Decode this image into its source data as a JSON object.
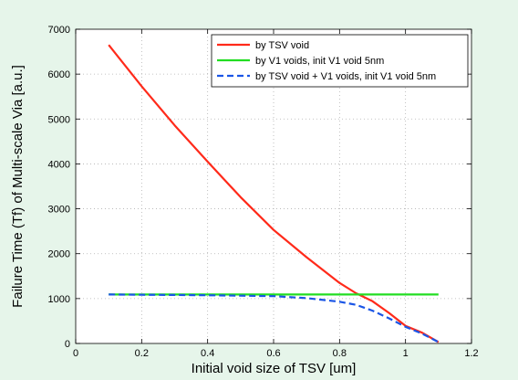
{
  "colors": {
    "background": "#e6f5ea",
    "plot_area": "#ffffff",
    "grid": "#b0b0b0"
  },
  "chart_data": {
    "type": "line",
    "title": "",
    "xlabel": "Initial void size of TSV [um]",
    "ylabel": "Failure Time (Tf) of Multi-scale Via [a.u.]",
    "xlim": [
      0,
      1.2
    ],
    "ylim": [
      0,
      7000
    ],
    "xticks": [
      0,
      0.2,
      0.4,
      0.6,
      0.8,
      1,
      1.2
    ],
    "xtick_labels": [
      "0",
      "0.2",
      "0.4",
      "0.6",
      "0.8",
      "1",
      "1.2"
    ],
    "yticks": [
      0,
      1000,
      2000,
      3000,
      4000,
      5000,
      6000,
      7000
    ],
    "ytick_labels": [
      "0",
      "1000",
      "2000",
      "3000",
      "4000",
      "5000",
      "6000",
      "7000"
    ],
    "grid": true,
    "grid_style": "dotted",
    "legend_position": "top-right",
    "series": [
      {
        "name": "by TSV void",
        "color": "#ff2a1a",
        "style": "solid",
        "x": [
          0.1,
          0.2,
          0.3,
          0.4,
          0.5,
          0.6,
          0.7,
          0.8,
          0.85,
          0.9,
          0.95,
          1.0,
          1.05,
          1.1
        ],
        "y": [
          6650,
          5730,
          4860,
          4050,
          3260,
          2530,
          1920,
          1350,
          1120,
          940,
          680,
          390,
          240,
          30
        ]
      },
      {
        "name": "by V1 voids, init V1 void 5nm",
        "color": "#22dd22",
        "style": "solid",
        "x": [
          0.1,
          1.1
        ],
        "y": [
          1090,
          1090
        ]
      },
      {
        "name": "by TSV void + V1 voids, init V1 void 5nm",
        "color": "#1a55e6",
        "style": "dashed",
        "x": [
          0.1,
          0.2,
          0.3,
          0.4,
          0.5,
          0.6,
          0.7,
          0.8,
          0.85,
          0.9,
          0.95,
          1.0,
          1.05,
          1.1
        ],
        "y": [
          1090,
          1085,
          1080,
          1075,
          1065,
          1055,
          1010,
          930,
          860,
          730,
          560,
          370,
          220,
          30
        ]
      }
    ]
  }
}
